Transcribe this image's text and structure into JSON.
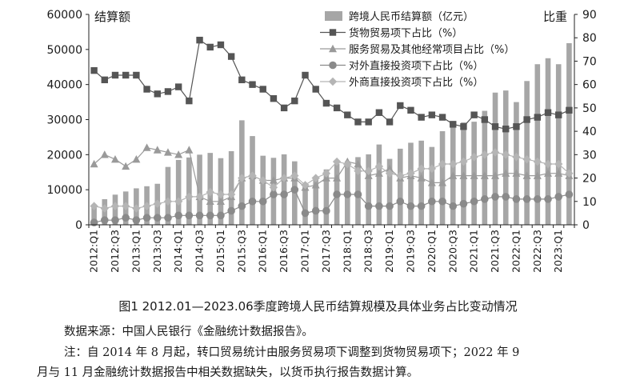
{
  "chart_data": {
    "type": "bar+line",
    "left_axis": {
      "label": "结算额",
      "ylim": [
        0,
        60000
      ],
      "ticks": [
        0,
        10000,
        20000,
        30000,
        40000,
        50000,
        60000
      ]
    },
    "right_axis": {
      "label": "比重",
      "ylim": [
        0,
        90
      ],
      "ticks": [
        0,
        10,
        20,
        30,
        40,
        50,
        60,
        70,
        80,
        90
      ]
    },
    "categories": [
      "2012:Q1",
      "2012:Q2",
      "2012:Q3",
      "2012:Q4",
      "2013:Q1",
      "2013:Q2",
      "2013:Q3",
      "2013:Q4",
      "2014:Q1",
      "2014:Q2",
      "2014:Q3",
      "2014:Q4",
      "2015:Q1",
      "2015:Q2",
      "2015:Q3",
      "2015:Q4",
      "2016:Q1",
      "2016:Q2",
      "2016:Q3",
      "2016:Q4",
      "2017:Q1",
      "2017:Q2",
      "2017:Q3",
      "2017:Q4",
      "2018:Q1",
      "2018:Q2",
      "2018:Q3",
      "2018:Q4",
      "2019:Q1",
      "2019:Q2",
      "2019:Q3",
      "2019:Q4",
      "2020:Q1",
      "2020:Q2",
      "2020:Q3",
      "2020:Q4",
      "2021:Q1",
      "2021:Q2",
      "2021:Q3",
      "2021:Q4",
      "2022:Q1",
      "2022:Q2",
      "2022:Q3",
      "2022:Q4",
      "2023:Q1",
      "2023:Q2"
    ],
    "tick_labels": [
      "2012:Q1",
      "2012:Q3",
      "2013:Q1",
      "2013:Q3",
      "2014:Q1",
      "2014:Q3",
      "2015:Q1",
      "2015:Q3",
      "2016:Q1",
      "2016:Q3",
      "2017:Q1",
      "2017:Q3",
      "2018:Q1",
      "2018:Q3",
      "2019:Q1",
      "2019:Q3",
      "2020:Q1",
      "2020:Q3",
      "2021:Q1",
      "2021:Q3",
      "2022:Q1",
      "2022:Q3",
      "2023:Q1"
    ],
    "bar_series": {
      "name": "跨境人民币结算额（亿元）",
      "axis": "left",
      "color": "#a6a6a6",
      "values": [
        5800,
        7300,
        8600,
        9500,
        10400,
        11000,
        11700,
        16500,
        18500,
        19200,
        20000,
        20500,
        19000,
        21000,
        29800,
        25300,
        19700,
        19100,
        20100,
        18100,
        11400,
        13600,
        15800,
        17400,
        18100,
        19300,
        20100,
        22900,
        18800,
        21700,
        23400,
        24000,
        22200,
        26700,
        28400,
        29200,
        29400,
        32500,
        37700,
        38300,
        35000,
        41000,
        45800,
        47500,
        45800,
        51800
      ]
    },
    "line_series": [
      {
        "name": "货物贸易项下占比（%）",
        "axis": "right",
        "marker": "square",
        "color": "#555555",
        "values": [
          66,
          62,
          64,
          64,
          64,
          58,
          56,
          57,
          59,
          53,
          79,
          76,
          77,
          72,
          62,
          60,
          58,
          54,
          50,
          53,
          64,
          58,
          52,
          50,
          47,
          44,
          44,
          48,
          44,
          51,
          49,
          46,
          47,
          46,
          43,
          42,
          47,
          45,
          42,
          41,
          42,
          45,
          46,
          48,
          47,
          49
        ]
      },
      {
        "name": "服务贸易及其他经常项目占比（%）",
        "axis": "right",
        "marker": "triangle",
        "color": "#9a9a9a",
        "values": [
          26,
          30,
          28,
          25,
          28,
          33,
          32,
          31,
          30,
          32,
          12,
          10,
          10,
          12,
          20,
          21,
          19,
          19,
          20,
          20,
          16,
          17,
          20,
          20,
          27,
          26,
          21,
          22,
          24,
          20,
          21,
          20,
          18,
          18,
          21,
          21,
          21,
          21,
          21,
          22,
          22,
          21,
          21,
          22,
          22,
          21
        ]
      },
      {
        "name": "对外直接投资项下占比（%）",
        "axis": "right",
        "marker": "circle",
        "color": "#8a8a8a",
        "values": [
          1,
          2,
          2,
          3,
          2,
          3,
          3,
          3,
          4,
          4,
          4,
          4,
          4,
          6,
          8,
          10,
          10,
          13,
          13,
          15,
          5,
          6,
          6,
          13,
          13,
          13,
          8,
          8,
          8,
          10,
          8,
          8,
          10,
          10,
          8,
          9,
          10,
          11,
          12,
          12,
          11,
          11,
          11,
          11,
          12,
          13
        ]
      },
      {
        "name": "外商直接投资项下占比（%）",
        "axis": "right",
        "marker": "diamond",
        "color": "#b5b5b5",
        "values": [
          8,
          7,
          8,
          8,
          7,
          8,
          9,
          10,
          10,
          12,
          12,
          14,
          13,
          13,
          20,
          21,
          19,
          16,
          20,
          21,
          17,
          20,
          22,
          27,
          26,
          23,
          23,
          25,
          22,
          21,
          22,
          24,
          24,
          26,
          26,
          27,
          29,
          30,
          31,
          30,
          29,
          28,
          27,
          26,
          26,
          22
        ]
      }
    ]
  },
  "caption": "图1  2012.01—2023.06季度跨境人民币结算规模及具体业务占比变动情况",
  "source": "数据来源：中国人民银行《金融统计数据报告》。",
  "note_line1": "注：自 2014 年 8 月起，转口贸易统计由服务贸易项下调整到货物贸易项下；2022 年 9",
  "note_line2": "月与 11 月金融统计数据报告中相关数据缺失，以货币执行报告数据计算。"
}
